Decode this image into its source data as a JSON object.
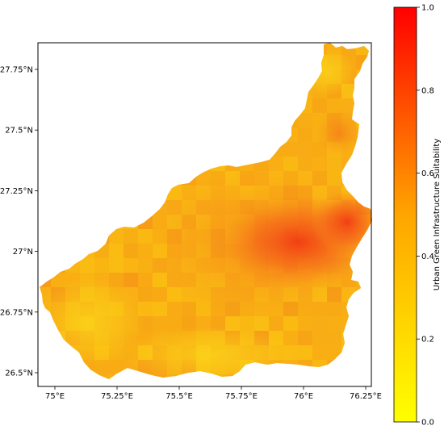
{
  "map": {
    "x_ticks": [
      {
        "value": 75.0,
        "label": "75°E"
      },
      {
        "value": 75.25,
        "label": "75.25°E"
      },
      {
        "value": 75.5,
        "label": "75.5°E"
      },
      {
        "value": 75.75,
        "label": "75.75°E"
      },
      {
        "value": 76.0,
        "label": "76°E"
      },
      {
        "value": 76.25,
        "label": "76.25°E"
      }
    ],
    "y_ticks": [
      {
        "value": 27.75,
        "label": "27.75°N"
      },
      {
        "value": 27.5,
        "label": "27.5°N"
      },
      {
        "value": 27.25,
        "label": "27.25°N"
      },
      {
        "value": 27.0,
        "label": "27°N"
      },
      {
        "value": 26.75,
        "label": "26.75°N"
      },
      {
        "value": 26.5,
        "label": "26.5°N"
      }
    ],
    "colors": {
      "low": "#ffff00",
      "mid": "#ffa500",
      "high": "#ff0000",
      "region_base": "#f9b312",
      "region_hot": "#f4501a"
    }
  },
  "colorbar": {
    "label": "Urban Green Infrastructure Suitability",
    "ticks": [
      {
        "value": 1.0,
        "label": "1.0"
      },
      {
        "value": 0.8,
        "label": "0.8"
      },
      {
        "value": 0.6,
        "label": "0.6"
      },
      {
        "value": 0.4,
        "label": "0.4"
      },
      {
        "value": 0.2,
        "label": "0.2"
      },
      {
        "value": 0.0,
        "label": "0.0"
      }
    ]
  }
}
